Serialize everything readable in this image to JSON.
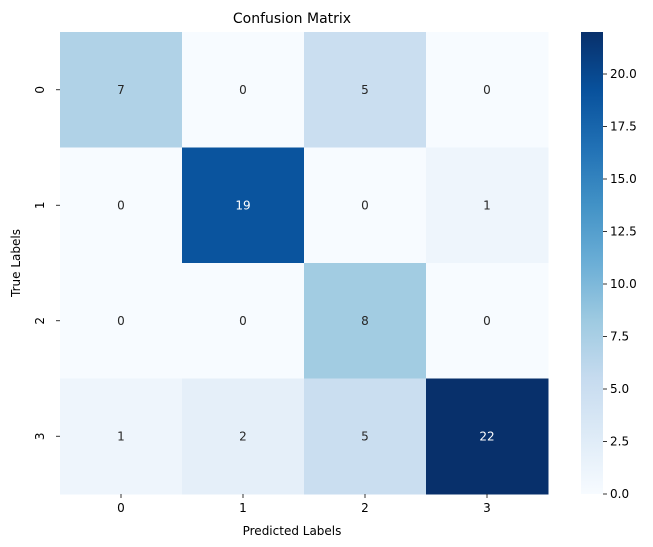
{
  "chart_data": {
    "type": "heatmap",
    "title": "Confusion Matrix",
    "xlabel": "Predicted Labels",
    "ylabel": "True Labels",
    "x_categories": [
      "0",
      "1",
      "2",
      "3"
    ],
    "y_categories": [
      "0",
      "1",
      "2",
      "3"
    ],
    "values": [
      [
        7,
        0,
        5,
        0
      ],
      [
        0,
        19,
        0,
        1
      ],
      [
        0,
        0,
        8,
        0
      ],
      [
        1,
        2,
        5,
        22
      ]
    ],
    "colormap": "Blues",
    "value_range": [
      0,
      22
    ],
    "colorbar": {
      "ticks": [
        "0.0",
        "2.5",
        "5.0",
        "7.5",
        "10.0",
        "12.5",
        "15.0",
        "17.5",
        "20.0"
      ],
      "tick_values": [
        0,
        2.5,
        5,
        7.5,
        10,
        12.5,
        15,
        17.5,
        20
      ]
    },
    "annotation_colors": {
      "dark": "#262626",
      "light": "#ffffff"
    }
  }
}
